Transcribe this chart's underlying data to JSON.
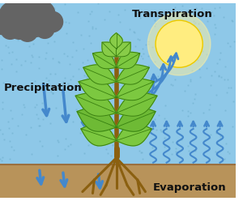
{
  "bg_sky_color": "#8EC8E8",
  "bg_sky_color2": "#A8D8F0",
  "bg_ground_color": "#B8935A",
  "ground_line_color": "#9A7040",
  "cloud_color": "#686868",
  "sun_color": "#FFED80",
  "sun_glow_color": "#FFF0A0",
  "plant_green_light": "#7CC840",
  "plant_green_mid": "#5AA020",
  "plant_green_dark": "#3A8010",
  "plant_stem_color": "#8B6010",
  "arrow_blue": "#4488CC",
  "arrow_blue_fill": "#3377BB",
  "rain_color": "#6AAAC8",
  "text_color": "#111111",
  "label_precipitation": "Precipitation",
  "label_transpiration": "Transpiration",
  "label_evaporation": "Evaporation",
  "figsize": [
    3.0,
    2.48
  ],
  "dpi": 100
}
